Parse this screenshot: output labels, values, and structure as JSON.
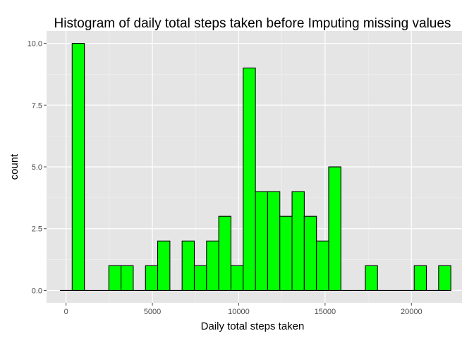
{
  "chart_data": {
    "type": "bar",
    "title": "Histogram of daily total steps taken before Imputing missing values",
    "xlabel": "Daily total steps taken",
    "ylabel": "count",
    "xlim": [
      -1130,
      22930
    ],
    "ylim": [
      -0.5,
      10.5
    ],
    "x_ticks": [
      0,
      5000,
      10000,
      15000,
      20000
    ],
    "x_tick_labels": [
      "0",
      "5000",
      "10000",
      "15000",
      "20000"
    ],
    "y_ticks": [
      0,
      2.5,
      5,
      7.5,
      10
    ],
    "y_tick_labels": [
      "0.0",
      "2.5",
      "5.0",
      "7.5",
      "10.0"
    ],
    "bin_width": 707.4,
    "bins": [
      {
        "x": 0,
        "count": 0
      },
      {
        "x": 707,
        "count": 10
      },
      {
        "x": 1415,
        "count": 0
      },
      {
        "x": 2122,
        "count": 0
      },
      {
        "x": 2830,
        "count": 1
      },
      {
        "x": 3537,
        "count": 1
      },
      {
        "x": 4244,
        "count": 0
      },
      {
        "x": 4952,
        "count": 1
      },
      {
        "x": 5659,
        "count": 2
      },
      {
        "x": 6367,
        "count": 0
      },
      {
        "x": 7074,
        "count": 2
      },
      {
        "x": 7781,
        "count": 1
      },
      {
        "x": 8489,
        "count": 2
      },
      {
        "x": 9196,
        "count": 3
      },
      {
        "x": 9904,
        "count": 1
      },
      {
        "x": 10611,
        "count": 9
      },
      {
        "x": 11318,
        "count": 4
      },
      {
        "x": 12026,
        "count": 4
      },
      {
        "x": 12733,
        "count": 3
      },
      {
        "x": 13441,
        "count": 4
      },
      {
        "x": 14148,
        "count": 3
      },
      {
        "x": 14855,
        "count": 2
      },
      {
        "x": 15563,
        "count": 5
      },
      {
        "x": 16270,
        "count": 0
      },
      {
        "x": 16978,
        "count": 0
      },
      {
        "x": 17685,
        "count": 1
      },
      {
        "x": 18392,
        "count": 0
      },
      {
        "x": 19100,
        "count": 0
      },
      {
        "x": 19807,
        "count": 0
      },
      {
        "x": 20515,
        "count": 1
      },
      {
        "x": 21222,
        "count": 0
      },
      {
        "x": 21929,
        "count": 1
      }
    ],
    "grid": true,
    "colors": {
      "panel": "#e5e5e5",
      "grid_major": "#ffffff",
      "grid_minor": "#f2f2f2",
      "bar_fill": "#00ff00",
      "bar_stroke": "#000000",
      "tick": "#4d4d4d"
    }
  }
}
